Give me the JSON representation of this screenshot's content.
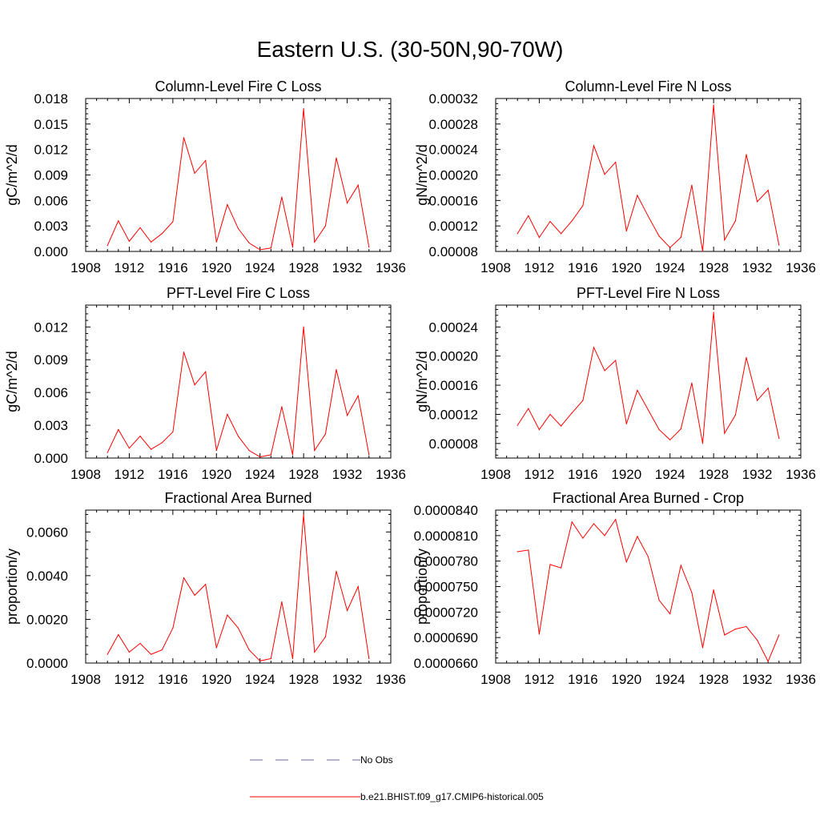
{
  "title": "Eastern U.S. (30-50N,90-70W)",
  "colors": {
    "series": "#ff0000",
    "obs": "#6a6aaa",
    "axis": "#000000"
  },
  "legend": {
    "obs_label": "No Obs",
    "model_label": "b.e21.BHIST.f09_g17.CMIP6-historical.005"
  },
  "chart_data": [
    {
      "type": "line",
      "title": "Column-Level Fire C Loss",
      "ylabel": "gC/m^2/d",
      "xlim": [
        1908,
        1936
      ],
      "ylim": [
        0,
        0.018
      ],
      "xticks": [
        1908,
        1912,
        1916,
        1920,
        1924,
        1928,
        1932,
        1936
      ],
      "xtick_labels": [
        "1908",
        "1912",
        "1916",
        "1920",
        "1924",
        "1928",
        "1932",
        "1936"
      ],
      "yticks": [
        0,
        0.003,
        0.006,
        0.009,
        0.012,
        0.015,
        0.018
      ],
      "ytick_labels": [
        "0.000",
        "0.003",
        "0.006",
        "0.009",
        "0.012",
        "0.015",
        "0.018"
      ],
      "x": [
        1910,
        1911,
        1912,
        1913,
        1914,
        1915,
        1916,
        1917,
        1918,
        1919,
        1920,
        1921,
        1922,
        1923,
        1924,
        1925,
        1926,
        1927,
        1928,
        1929,
        1930,
        1931,
        1932,
        1933,
        1934
      ],
      "values": [
        0.0007,
        0.0036,
        0.0012,
        0.0028,
        0.0011,
        0.0021,
        0.0035,
        0.0134,
        0.0092,
        0.0107,
        0.0011,
        0.0055,
        0.0027,
        0.001,
        0.0002,
        0.0004,
        0.0064,
        0.0005,
        0.0168,
        0.0011,
        0.003,
        0.011,
        0.0057,
        0.0078,
        0.0005
      ]
    },
    {
      "type": "line",
      "title": "Column-Level Fire N Loss",
      "ylabel": "gN/m^2/d",
      "xlim": [
        1908,
        1936
      ],
      "ylim": [
        8e-05,
        0.00032
      ],
      "xticks": [
        1908,
        1912,
        1916,
        1920,
        1924,
        1928,
        1932,
        1936
      ],
      "xtick_labels": [
        "1908",
        "1912",
        "1916",
        "1920",
        "1924",
        "1928",
        "1932",
        "1936"
      ],
      "yticks": [
        8e-05,
        0.00012,
        0.00016,
        0.0002,
        0.00024,
        0.00028,
        0.00032
      ],
      "ytick_labels": [
        "0.00008",
        "0.00012",
        "0.00016",
        "0.00020",
        "0.00024",
        "0.00028",
        "0.00032"
      ],
      "x": [
        1910,
        1911,
        1912,
        1913,
        1914,
        1915,
        1916,
        1917,
        1918,
        1919,
        1920,
        1921,
        1922,
        1923,
        1924,
        1925,
        1926,
        1927,
        1928,
        1929,
        1930,
        1931,
        1932,
        1933,
        1934
      ],
      "values": [
        0.000108,
        0.000136,
        0.000102,
        0.000127,
        0.000108,
        0.000128,
        0.000152,
        0.000246,
        0.000201,
        0.00022,
        0.000112,
        0.000168,
        0.000135,
        0.000104,
        8.6e-05,
        0.000102,
        0.000184,
        8e-05,
        0.00031,
        9.8e-05,
        0.000128,
        0.000232,
        0.000158,
        0.000176,
        9e-05
      ]
    },
    {
      "type": "line",
      "title": "PFT-Level Fire C Loss",
      "ylabel": "gC/m^2/d",
      "xlim": [
        1908,
        1936
      ],
      "ylim": [
        0,
        0.014
      ],
      "xticks": [
        1908,
        1912,
        1916,
        1920,
        1924,
        1928,
        1932,
        1936
      ],
      "xtick_labels": [
        "1908",
        "1912",
        "1916",
        "1920",
        "1924",
        "1928",
        "1932",
        "1936"
      ],
      "yticks": [
        0,
        0.003,
        0.006,
        0.009,
        0.012
      ],
      "ytick_labels": [
        "0.000",
        "0.003",
        "0.006",
        "0.009",
        "0.012"
      ],
      "x": [
        1910,
        1911,
        1912,
        1913,
        1914,
        1915,
        1916,
        1917,
        1918,
        1919,
        1920,
        1921,
        1922,
        1923,
        1924,
        1925,
        1926,
        1927,
        1928,
        1929,
        1930,
        1931,
        1932,
        1933,
        1934
      ],
      "values": [
        0.0005,
        0.0026,
        0.0009,
        0.002,
        0.0008,
        0.0014,
        0.0024,
        0.0097,
        0.0067,
        0.0079,
        0.0007,
        0.004,
        0.002,
        0.0007,
        0.0001,
        0.0003,
        0.0047,
        0.0003,
        0.012,
        0.0007,
        0.0022,
        0.0081,
        0.0039,
        0.0057,
        0.0003
      ]
    },
    {
      "type": "line",
      "title": "PFT-Level Fire N Loss",
      "ylabel": "gN/m^2/d",
      "xlim": [
        1908,
        1936
      ],
      "ylim": [
        6e-05,
        0.00027
      ],
      "xticks": [
        1908,
        1912,
        1916,
        1920,
        1924,
        1928,
        1932,
        1936
      ],
      "xtick_labels": [
        "1908",
        "1912",
        "1916",
        "1920",
        "1924",
        "1928",
        "1932",
        "1936"
      ],
      "yticks": [
        8e-05,
        0.00012,
        0.00016,
        0.0002,
        0.00024
      ],
      "ytick_labels": [
        "0.00008",
        "0.00012",
        "0.00016",
        "0.00020",
        "0.00024"
      ],
      "x": [
        1910,
        1911,
        1912,
        1913,
        1914,
        1915,
        1916,
        1917,
        1918,
        1919,
        1920,
        1921,
        1922,
        1923,
        1924,
        1925,
        1926,
        1927,
        1928,
        1929,
        1930,
        1931,
        1932,
        1933,
        1934
      ],
      "values": [
        0.000105,
        0.000128,
        9.9e-05,
        0.00012,
        0.000104,
        0.000122,
        0.000139,
        0.000212,
        0.00018,
        0.000194,
        0.000107,
        0.000153,
        0.000126,
        9.9e-05,
        8.5e-05,
        0.0001,
        0.000163,
        8e-05,
        0.00026,
        9.4e-05,
        0.000119,
        0.000198,
        0.000139,
        0.000156,
        8.7e-05
      ]
    },
    {
      "type": "line",
      "title": "Fractional Area Burned",
      "ylabel": "proportion/y",
      "xlim": [
        1908,
        1936
      ],
      "ylim": [
        0,
        0.007
      ],
      "xticks": [
        1908,
        1912,
        1916,
        1920,
        1924,
        1928,
        1932,
        1936
      ],
      "xtick_labels": [
        "1908",
        "1912",
        "1916",
        "1920",
        "1924",
        "1928",
        "1932",
        "1936"
      ],
      "yticks": [
        0,
        0.002,
        0.004,
        0.006
      ],
      "ytick_labels": [
        "0.0000",
        "0.0020",
        "0.0040",
        "0.0060"
      ],
      "x": [
        1910,
        1911,
        1912,
        1913,
        1914,
        1915,
        1916,
        1917,
        1918,
        1919,
        1920,
        1921,
        1922,
        1923,
        1924,
        1925,
        1926,
        1927,
        1928,
        1929,
        1930,
        1931,
        1932,
        1933,
        1934
      ],
      "values": [
        0.0004,
        0.0013,
        0.0005,
        0.0009,
        0.0004,
        0.0006,
        0.0016,
        0.0039,
        0.0031,
        0.0036,
        0.0007,
        0.0022,
        0.0016,
        0.0006,
        0.0001,
        0.0002,
        0.0028,
        0.0002,
        0.0068,
        0.0005,
        0.0012,
        0.0042,
        0.0024,
        0.0035,
        0.0002
      ]
    },
    {
      "type": "line",
      "title": "Fractional Area Burned - Crop",
      "ylabel": "proportion/y",
      "xlim": [
        1908,
        1936
      ],
      "ylim": [
        6.6e-05,
        8.4e-05
      ],
      "xticks": [
        1908,
        1912,
        1916,
        1920,
        1924,
        1928,
        1932,
        1936
      ],
      "xtick_labels": [
        "1908",
        "1912",
        "1916",
        "1920",
        "1924",
        "1928",
        "1932",
        "1936"
      ],
      "yticks": [
        6.6e-05,
        6.9e-05,
        7.2e-05,
        7.5e-05,
        7.8e-05,
        8.1e-05,
        8.4e-05
      ],
      "ytick_labels": [
        "0.0000660",
        "0.0000690",
        "0.0000720",
        "0.0000750",
        "0.0000780",
        "0.0000810",
        "0.0000840"
      ],
      "x": [
        1910,
        1911,
        1912,
        1913,
        1914,
        1915,
        1916,
        1917,
        1918,
        1919,
        1920,
        1921,
        1922,
        1923,
        1924,
        1925,
        1926,
        1927,
        1928,
        1929,
        1930,
        1931,
        1932,
        1933,
        1934
      ],
      "values": [
        7.91e-05,
        7.93e-05,
        6.94e-05,
        7.76e-05,
        7.72e-05,
        8.26e-05,
        8.07e-05,
        8.24e-05,
        8.1e-05,
        8.29e-05,
        7.79e-05,
        8.09e-05,
        7.85e-05,
        7.34e-05,
        7.18e-05,
        7.75e-05,
        7.43e-05,
        6.78e-05,
        7.46e-05,
        6.93e-05,
        7e-05,
        7.03e-05,
        6.87e-05,
        6.62e-05,
        6.93e-05
      ]
    }
  ]
}
